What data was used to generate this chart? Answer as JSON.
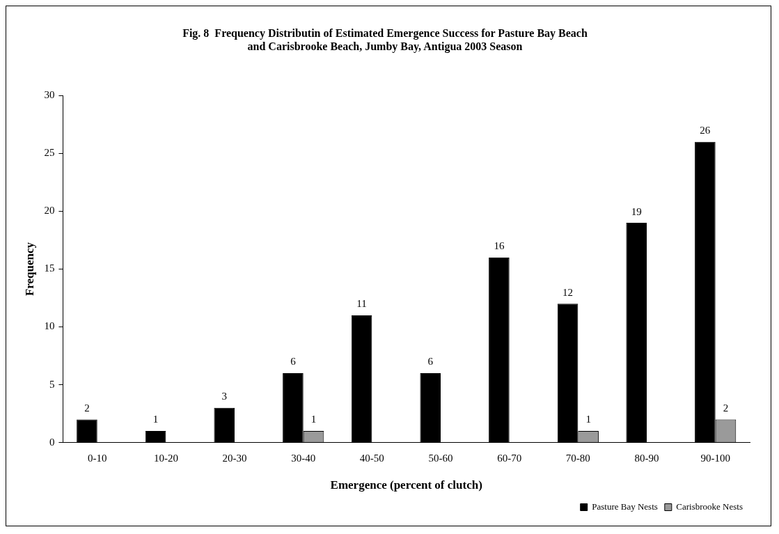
{
  "chart_data": {
    "type": "bar",
    "title": "Fig. 8  Frequency Distributin of Estimated Emergence Success for Pasture Bay Beach\nand Carisbrooke Beach, Jumby Bay, Antigua 2003 Season",
    "xlabel": "Emergence (percent of clutch)",
    "ylabel": "Frequency",
    "categories": [
      "0-10",
      "10-20",
      "20-30",
      "30-40",
      "40-50",
      "50-60",
      "60-70",
      "70-80",
      "80-90",
      "90-100"
    ],
    "series": [
      {
        "name": "Pasture Bay Nests",
        "color": "#000000",
        "values": [
          2,
          1,
          3,
          6,
          11,
          6,
          16,
          12,
          19,
          26
        ]
      },
      {
        "name": "Carisbrooke Nests",
        "color": "#9a9a9a",
        "values": [
          null,
          null,
          null,
          1,
          null,
          null,
          null,
          1,
          null,
          2
        ]
      }
    ],
    "ylim": [
      0,
      30
    ],
    "yticks": [
      0,
      5,
      10,
      15,
      20,
      25,
      30
    ],
    "grid": false,
    "legend": "bottom right",
    "data_labels": true
  }
}
